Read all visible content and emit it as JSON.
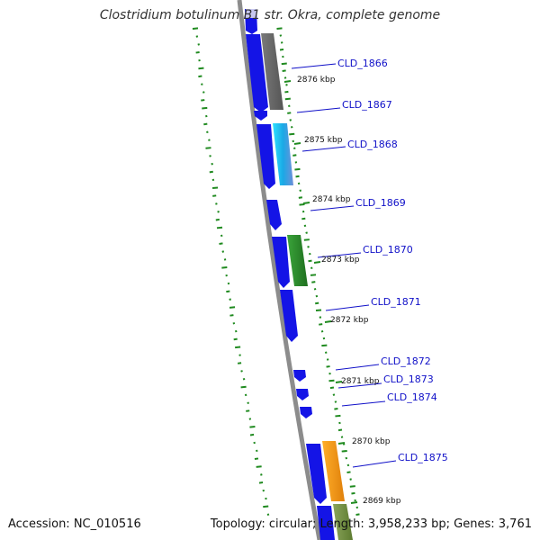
{
  "title": "Clostridium botulinum B1 str. Okra, complete genome",
  "footer": {
    "accession": "Accession: NC_010516",
    "summary": "Topology: circular; Length: 3,958,233 bp; Genes: 3,761"
  },
  "genes": [
    {
      "label": "CLD_1866",
      "cog_color": "#6b6b6b"
    },
    {
      "label": "CLD_1867",
      "cog_color": null
    },
    {
      "label": "CLD_1868",
      "cog_color": "#23c4e8"
    },
    {
      "label": "CLD_1869",
      "cog_color": null
    },
    {
      "label": "CLD_1870",
      "cog_color": "#2f8c2f"
    },
    {
      "label": "CLD_1871",
      "cog_color": null
    },
    {
      "label": "CLD_1872",
      "cog_color": null
    },
    {
      "label": "CLD_1873",
      "cog_color": null
    },
    {
      "label": "CLD_1874",
      "cog_color": null
    },
    {
      "label": "CLD_1875",
      "cog_color": "#f39a1b"
    }
  ],
  "ticks": [
    "2876 kbp",
    "2875 kbp",
    "2874 kbp",
    "2873 kbp",
    "2872 kbp",
    "2871 kbp",
    "2870 kbp",
    "2869 kbp"
  ],
  "colors": {
    "cds": "#1414e6",
    "backbone": "#8c8c8c",
    "gc_skew": "#1f8a1f",
    "label": "#1010c8"
  }
}
